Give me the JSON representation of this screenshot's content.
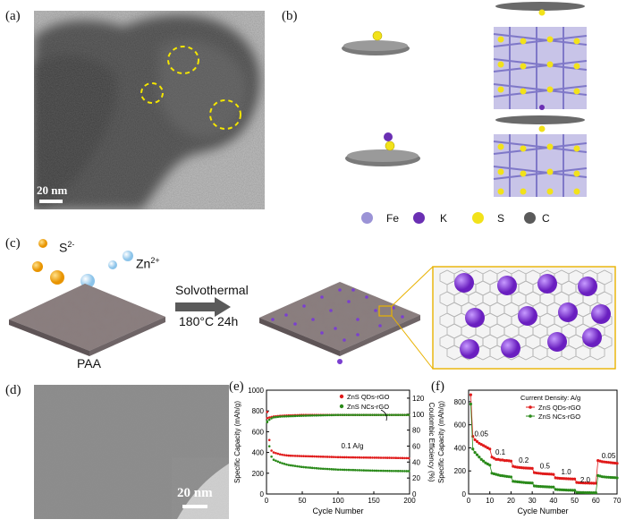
{
  "figure": {
    "panel_labels": {
      "a": "(a)",
      "b": "(b)",
      "c": "(c)",
      "d": "(d)",
      "e": "(e)",
      "f": "(f)"
    },
    "panel_a": {
      "scale_bar": "20 nm"
    },
    "panel_b": {
      "legend": [
        {
          "name": "Fe",
          "color": "#9b93d6"
        },
        {
          "name": "K",
          "color": "#6a2fb3"
        },
        {
          "name": "S",
          "color": "#f2e21a"
        },
        {
          "name": "C",
          "color": "#5a5a5a"
        }
      ]
    },
    "panel_c": {
      "ion1": "S",
      "ion1_sup": "2-",
      "ion2": "Zn",
      "ion2_sup": "2+",
      "process": "Solvothermal",
      "condition": "180°C 24h",
      "substrate": "PAA"
    },
    "panel_d": {
      "scale_bar": "20 nm"
    }
  },
  "chart_data": [
    {
      "panel": "e",
      "type": "scatter",
      "xlabel": "Cycle Number",
      "ylabel": "Specific Capacity (mAh/g)",
      "y2label": "Coulombic Efficiency (%)",
      "xlim": [
        0,
        200
      ],
      "ylim": [
        0,
        1000
      ],
      "y2lim": [
        0,
        130
      ],
      "xticks": [
        "0",
        "50",
        "100",
        "150",
        "200"
      ],
      "yticks": [
        "0",
        "200",
        "400",
        "600",
        "800",
        "1000"
      ],
      "y2ticks": [
        "0",
        "20",
        "40",
        "60",
        "80",
        "100",
        "120"
      ],
      "annotation": "0.1 A/g",
      "series": [
        {
          "name": "ZnS QDs-rGO",
          "color": "#e01a1a",
          "capacity": [
            [
              1,
              790
            ],
            [
              5,
              430
            ],
            [
              10,
              400
            ],
            [
              20,
              380
            ],
            [
              30,
              370
            ],
            [
              50,
              365
            ],
            [
              75,
              360
            ],
            [
              100,
              355
            ],
            [
              125,
              352
            ],
            [
              150,
              350
            ],
            [
              175,
              348
            ],
            [
              200,
              345
            ]
          ],
          "efficiency": [
            [
              1,
              95
            ],
            [
              5,
              96
            ],
            [
              10,
              97
            ],
            [
              20,
              98
            ],
            [
              50,
              99
            ],
            [
              100,
              99
            ],
            [
              150,
              99
            ],
            [
              200,
              99
            ]
          ]
        },
        {
          "name": "ZnS NCs-rGO",
          "color": "#2a8a1a",
          "capacity": [
            [
              1,
              700
            ],
            [
              5,
              380
            ],
            [
              10,
              330
            ],
            [
              20,
              300
            ],
            [
              30,
              280
            ],
            [
              50,
              260
            ],
            [
              75,
              245
            ],
            [
              100,
              235
            ],
            [
              125,
              230
            ],
            [
              150,
              225
            ],
            [
              175,
              222
            ],
            [
              200,
              220
            ]
          ],
          "efficiency": [
            [
              1,
              90
            ],
            [
              5,
              94
            ],
            [
              10,
              96
            ],
            [
              20,
              97
            ],
            [
              50,
              98
            ],
            [
              100,
              99
            ],
            [
              150,
              99
            ],
            [
              200,
              99
            ]
          ]
        }
      ],
      "legend": [
        "ZnS QDs-rGO",
        "ZnS NCs-rGO"
      ]
    },
    {
      "panel": "f",
      "type": "scatter",
      "xlabel": "Cycle Number",
      "ylabel": "Specific Capacity (mAh/g)",
      "xlim": [
        0,
        70
      ],
      "ylim": [
        0,
        900
      ],
      "xticks": [
        "0",
        "10",
        "20",
        "30",
        "40",
        "50",
        "60",
        "70"
      ],
      "yticks": [
        "0",
        "200",
        "400",
        "600",
        "800"
      ],
      "legend_title": "Current Density: A/g",
      "rate_labels": [
        {
          "text": "0.05",
          "x": 6,
          "y": 500
        },
        {
          "text": "0.1",
          "x": 15,
          "y": 340
        },
        {
          "text": "0.2",
          "x": 26,
          "y": 270
        },
        {
          "text": "0.5",
          "x": 36,
          "y": 220
        },
        {
          "text": "1.0",
          "x": 46,
          "y": 170
        },
        {
          "text": "2.0",
          "x": 55,
          "y": 100
        },
        {
          "text": "0.05",
          "x": 66,
          "y": 310
        }
      ],
      "series": [
        {
          "name": "ZnS QDs-rGO",
          "color": "#e01a1a",
          "points": [
            [
              1,
              860
            ],
            [
              2,
              500
            ],
            [
              3,
              470
            ],
            [
              4,
              455
            ],
            [
              5,
              440
            ],
            [
              6,
              430
            ],
            [
              7,
              420
            ],
            [
              8,
              410
            ],
            [
              9,
              400
            ],
            [
              10,
              390
            ],
            [
              11,
              320
            ],
            [
              12,
              310
            ],
            [
              13,
              300
            ],
            [
              14,
              300
            ],
            [
              15,
              295
            ],
            [
              16,
              295
            ],
            [
              17,
              290
            ],
            [
              18,
              290
            ],
            [
              19,
              288
            ],
            [
              20,
              285
            ],
            [
              21,
              240
            ],
            [
              22,
              235
            ],
            [
              23,
              232
            ],
            [
              24,
              230
            ],
            [
              25,
              228
            ],
            [
              26,
              226
            ],
            [
              27,
              225
            ],
            [
              28,
              224
            ],
            [
              29,
              223
            ],
            [
              30,
              222
            ],
            [
              31,
              185
            ],
            [
              32,
              182
            ],
            [
              33,
              180
            ],
            [
              34,
              178
            ],
            [
              35,
              176
            ],
            [
              36,
              175
            ],
            [
              37,
              174
            ],
            [
              38,
              173
            ],
            [
              39,
              172
            ],
            [
              40,
              170
            ],
            [
              41,
              140
            ],
            [
              42,
              138
            ],
            [
              43,
              136
            ],
            [
              44,
              135
            ],
            [
              45,
              134
            ],
            [
              46,
              133
            ],
            [
              47,
              132
            ],
            [
              48,
              131
            ],
            [
              49,
              130
            ],
            [
              50,
              130
            ],
            [
              51,
              100
            ],
            [
              52,
              98
            ],
            [
              53,
              97
            ],
            [
              54,
              96
            ],
            [
              55,
              95
            ],
            [
              56,
              95
            ],
            [
              57,
              94
            ],
            [
              58,
              94
            ],
            [
              59,
              93
            ],
            [
              60,
              93
            ],
            [
              61,
              290
            ],
            [
              62,
              285
            ],
            [
              63,
              280
            ],
            [
              64,
              278
            ],
            [
              65,
              276
            ],
            [
              66,
              274
            ],
            [
              67,
              272
            ],
            [
              68,
              270
            ],
            [
              69,
              268
            ],
            [
              70,
              266
            ]
          ]
        },
        {
          "name": "ZnS NCs-rGO",
          "color": "#2a8a1a",
          "points": [
            [
              1,
              780
            ],
            [
              2,
              390
            ],
            [
              3,
              360
            ],
            [
              4,
              340
            ],
            [
              5,
              320
            ],
            [
              6,
              300
            ],
            [
              7,
              285
            ],
            [
              8,
              270
            ],
            [
              9,
              260
            ],
            [
              10,
              250
            ],
            [
              11,
              180
            ],
            [
              12,
              175
            ],
            [
              13,
              170
            ],
            [
              14,
              165
            ],
            [
              15,
              160
            ],
            [
              16,
              158
            ],
            [
              17,
              155
            ],
            [
              18,
              152
            ],
            [
              19,
              150
            ],
            [
              20,
              148
            ],
            [
              21,
              110
            ],
            [
              22,
              108
            ],
            [
              23,
              106
            ],
            [
              24,
              104
            ],
            [
              25,
              102
            ],
            [
              26,
              100
            ],
            [
              27,
              98
            ],
            [
              28,
              97
            ],
            [
              29,
              96
            ],
            [
              30,
              95
            ],
            [
              31,
              70
            ],
            [
              32,
              68
            ],
            [
              33,
              66
            ],
            [
              34,
              65
            ],
            [
              35,
              64
            ],
            [
              36,
              63
            ],
            [
              37,
              62
            ],
            [
              38,
              61
            ],
            [
              39,
              60
            ],
            [
              40,
              60
            ],
            [
              41,
              40
            ],
            [
              42,
              38
            ],
            [
              43,
              37
            ],
            [
              44,
              36
            ],
            [
              45,
              35
            ],
            [
              46,
              34
            ],
            [
              47,
              33
            ],
            [
              48,
              33
            ],
            [
              49,
              32
            ],
            [
              50,
              32
            ],
            [
              51,
              15
            ],
            [
              52,
              14
            ],
            [
              53,
              13
            ],
            [
              54,
              13
            ],
            [
              55,
              12
            ],
            [
              56,
              12
            ],
            [
              57,
              12
            ],
            [
              58,
              11
            ],
            [
              59,
              11
            ],
            [
              60,
              11
            ],
            [
              61,
              160
            ],
            [
              62,
              155
            ],
            [
              63,
              150
            ],
            [
              64,
              148
            ],
            [
              65,
              146
            ],
            [
              66,
              145
            ],
            [
              67,
              144
            ],
            [
              68,
              143
            ],
            [
              69,
              142
            ],
            [
              70,
              140
            ]
          ]
        }
      ],
      "legend": [
        "ZnS QDs-rGO",
        "ZnS NCs-rGO"
      ]
    }
  ]
}
